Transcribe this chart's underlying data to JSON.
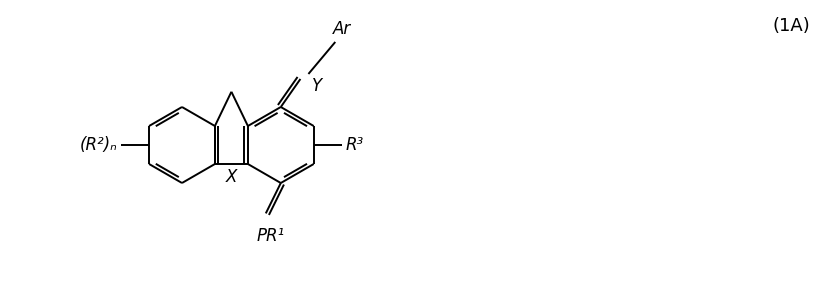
{
  "label_1A": "(1A)",
  "label_Ar": "Ar",
  "label_Y": "Y",
  "label_R2n": "(R²)ₙ",
  "label_R3": "R³",
  "label_PR1": "PR¹",
  "label_X": "X",
  "bg_color": "#ffffff",
  "line_color": "#000000",
  "font_size": 12,
  "fig_width": 8.26,
  "fig_height": 2.82,
  "dpi": 100
}
